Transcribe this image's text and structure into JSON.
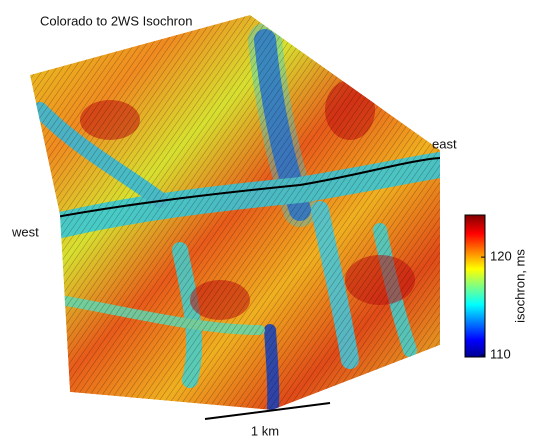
{
  "chart_data": {
    "type": "surface",
    "title": "Colorado to 2WS Isochron",
    "annotations": [
      "east",
      "west"
    ],
    "scale_bar": "1 km",
    "colorbar": {
      "label": "isochron, ms",
      "lim": [
        109.8,
        124.3
      ],
      "ticks": [
        110,
        120
      ]
    }
  }
}
